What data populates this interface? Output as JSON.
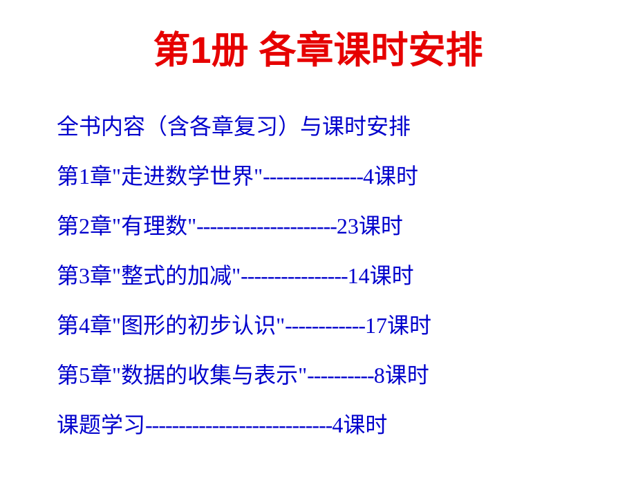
{
  "title": {
    "text": "第1册 各章课时安排",
    "color": "#e60000",
    "fontsize": 54
  },
  "subtitle": {
    "text": "全书内容（含各章复习）与课时安排",
    "color": "#0000cc",
    "fontsize": 32,
    "line_height": 72
  },
  "chapters": [
    {
      "label": "第1章\"走进数学世界\"",
      "dashes": "---------------",
      "hours": "4课时"
    },
    {
      "label": "第2章\"有理数\"",
      "dashes": "---------------------",
      "hours": "23课时"
    },
    {
      "label": "第3章\"整式的加减\"",
      "dashes": "----------------",
      "hours": "14课时"
    },
    {
      "label": "第4章\"图形的初步认识\"",
      "dashes": "------------",
      "hours": "17课时"
    },
    {
      "label": "第5章\"数据的收集与表示\"",
      "dashes": "----------",
      "hours": "8课时"
    },
    {
      "label": "课题学习",
      "dashes": "----------------------------",
      "hours": "4课时"
    }
  ],
  "body_style": {
    "color": "#0000cc",
    "fontsize": 32,
    "line_height": 72
  }
}
